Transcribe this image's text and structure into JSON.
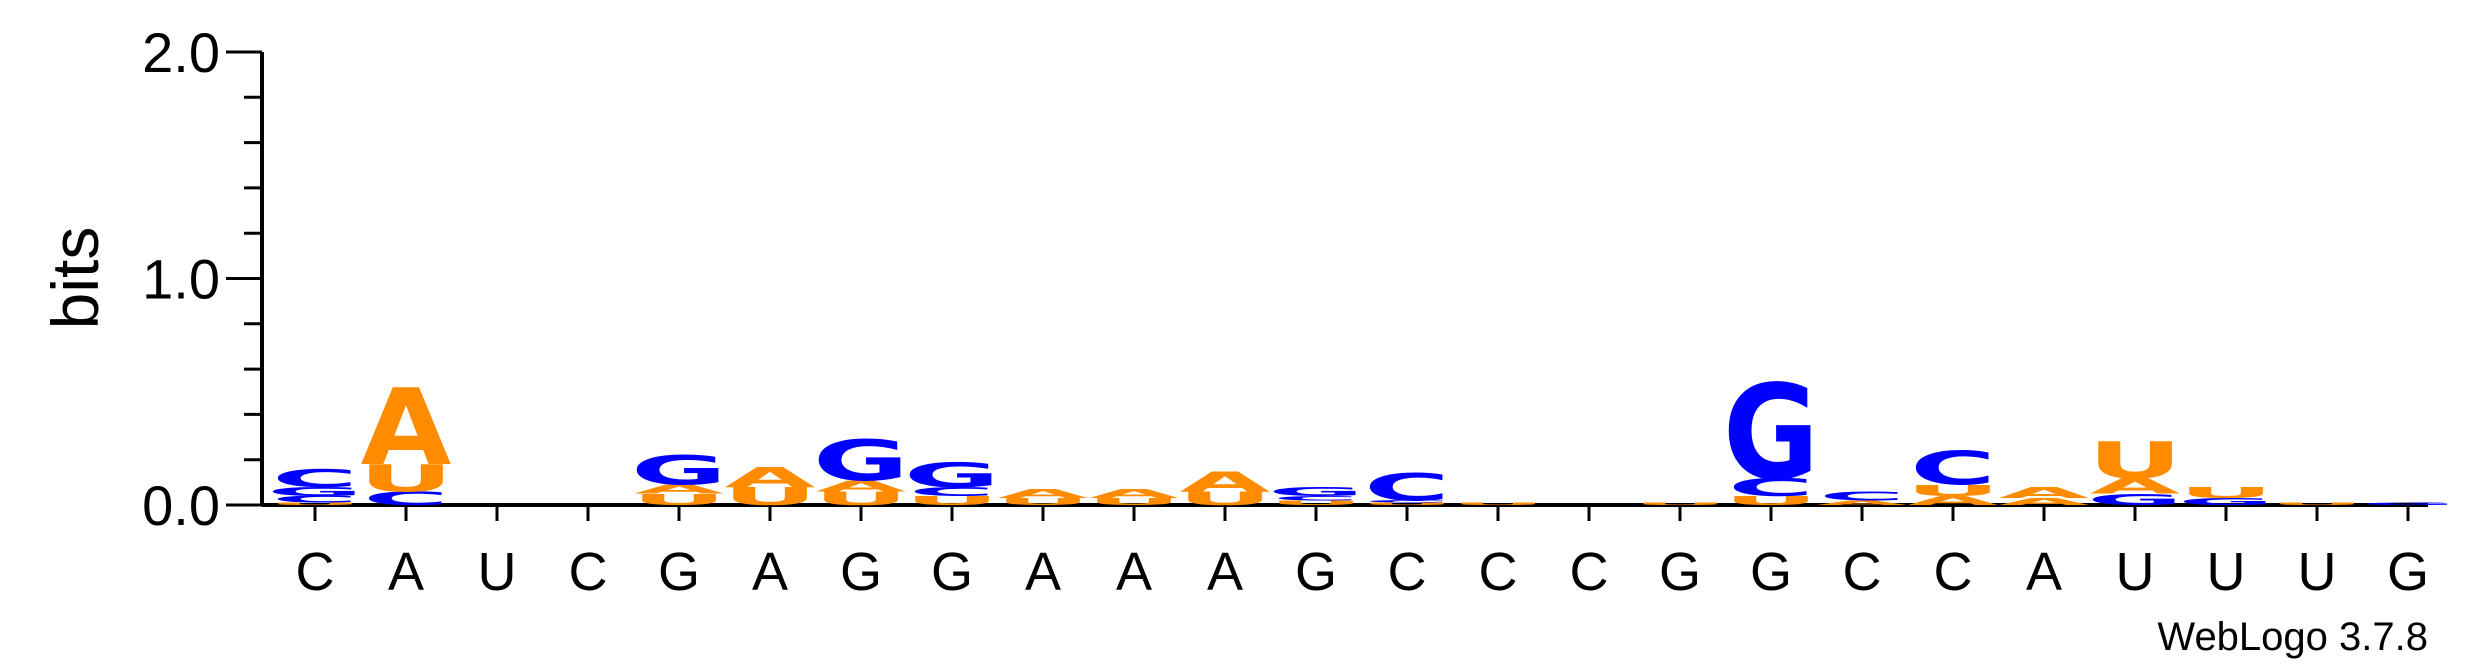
{
  "chart_data": {
    "type": "sequence-logo",
    "ylabel": "bits",
    "ylim": [
      0,
      2.0
    ],
    "yticks": [
      {
        "value": 0.0,
        "label": "0.0"
      },
      {
        "value": 1.0,
        "label": "1.0"
      },
      {
        "value": 2.0,
        "label": "2.0"
      }
    ],
    "xlabels": [
      "C",
      "A",
      "U",
      "C",
      "G",
      "A",
      "G",
      "G",
      "A",
      "A",
      "A",
      "G",
      "C",
      "C",
      "C",
      "G",
      "G",
      "C",
      "C",
      "A",
      "U",
      "U",
      "U",
      "G"
    ],
    "colors": {
      "A": "#ff8c00",
      "U": "#ff8c00",
      "G": "#0000ff",
      "C": "#0000ff"
    },
    "positions": [
      {
        "stack": [
          {
            "base": "U",
            "bits": 0.01
          },
          {
            "base": "C",
            "bits": 0.03
          },
          {
            "base": "G",
            "bits": 0.04
          },
          {
            "base": "C",
            "bits": 0.08
          }
        ]
      },
      {
        "stack": [
          {
            "base": "C",
            "bits": 0.06
          },
          {
            "base": "U",
            "bits": 0.12
          },
          {
            "base": "A",
            "bits": 0.34
          }
        ]
      },
      {
        "stack": []
      },
      {
        "stack": []
      },
      {
        "stack": [
          {
            "base": "U",
            "bits": 0.05
          },
          {
            "base": "A",
            "bits": 0.04
          },
          {
            "base": "G",
            "bits": 0.13
          }
        ]
      },
      {
        "stack": [
          {
            "base": "U",
            "bits": 0.08
          },
          {
            "base": "A",
            "bits": 0.09
          }
        ]
      },
      {
        "stack": [
          {
            "base": "U",
            "bits": 0.06
          },
          {
            "base": "A",
            "bits": 0.05
          },
          {
            "base": "G",
            "bits": 0.18
          }
        ]
      },
      {
        "stack": [
          {
            "base": "U",
            "bits": 0.04
          },
          {
            "base": "C",
            "bits": 0.04
          },
          {
            "base": "G",
            "bits": 0.11
          }
        ]
      },
      {
        "stack": [
          {
            "base": "U",
            "bits": 0.03
          },
          {
            "base": "A",
            "bits": 0.04
          }
        ]
      },
      {
        "stack": [
          {
            "base": "U",
            "bits": 0.03
          },
          {
            "base": "A",
            "bits": 0.04
          }
        ]
      },
      {
        "stack": [
          {
            "base": "U",
            "bits": 0.06
          },
          {
            "base": "A",
            "bits": 0.09
          }
        ]
      },
      {
        "stack": [
          {
            "base": "U",
            "bits": 0.02
          },
          {
            "base": "C",
            "bits": 0.02
          },
          {
            "base": "G",
            "bits": 0.04
          }
        ]
      },
      {
        "stack": [
          {
            "base": "U",
            "bits": 0.01
          },
          {
            "base": "C",
            "bits": 0.01
          },
          {
            "base": "C",
            "bits": 0.12
          }
        ]
      },
      {
        "stack": [
          {
            "base": "U",
            "bits": 0.01
          }
        ]
      },
      {
        "stack": []
      },
      {
        "stack": [
          {
            "base": "U",
            "bits": 0.01
          }
        ]
      },
      {
        "stack": [
          {
            "base": "U",
            "bits": 0.04
          },
          {
            "base": "C",
            "bits": 0.08
          },
          {
            "base": "G",
            "bits": 0.42
          }
        ]
      },
      {
        "stack": [
          {
            "base": "A",
            "bits": 0.02
          },
          {
            "base": "C",
            "bits": 0.04
          }
        ]
      },
      {
        "stack": [
          {
            "base": "A",
            "bits": 0.04
          },
          {
            "base": "U",
            "bits": 0.05
          },
          {
            "base": "C",
            "bits": 0.15
          }
        ]
      },
      {
        "stack": [
          {
            "base": "A",
            "bits": 0.03
          },
          {
            "base": "A",
            "bits": 0.05
          }
        ]
      },
      {
        "stack": [
          {
            "base": "G",
            "bits": 0.05
          },
          {
            "base": "A",
            "bits": 0.07
          },
          {
            "base": "U",
            "bits": 0.16
          }
        ]
      },
      {
        "stack": [
          {
            "base": "G",
            "bits": 0.03
          },
          {
            "base": "U",
            "bits": 0.05
          }
        ]
      },
      {
        "stack": [
          {
            "base": "U",
            "bits": 0.01
          }
        ]
      },
      {
        "stack": [
          {
            "base": "G",
            "bits": 0.01
          }
        ]
      }
    ]
  },
  "credit": "WebLogo 3.7.8"
}
